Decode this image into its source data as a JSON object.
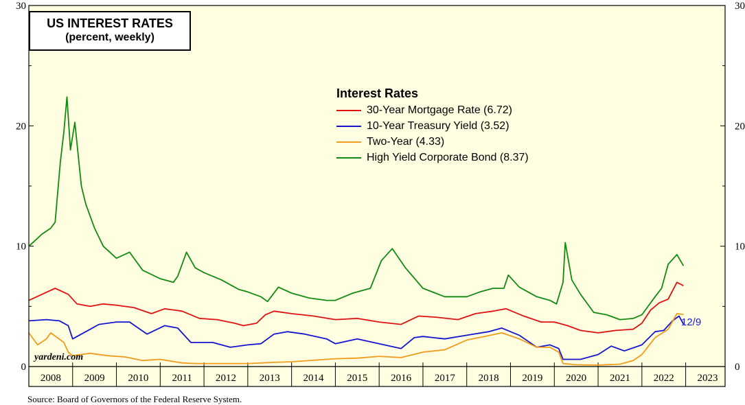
{
  "chart_data": {
    "type": "line",
    "title": "US INTEREST RATES",
    "subtitle": "(percent, weekly)",
    "legend_title": "Interest Rates",
    "ylim": [
      0,
      30
    ],
    "yticks": [
      "0",
      "10",
      "20",
      "30"
    ],
    "xlim": [
      2008.0,
      2023.9
    ],
    "xticks": [
      "2008",
      "2009",
      "2010",
      "2011",
      "2012",
      "2013",
      "2014",
      "2015",
      "2016",
      "2017",
      "2018",
      "2019",
      "2020",
      "2021",
      "2022",
      "2023"
    ],
    "end_label": "12/9",
    "source_text": "Source: Board of Governors of the Federal Reserve System.",
    "watermark": "yardeni.com",
    "series": [
      {
        "name": "30-Year Mortgage Rate (6.72)",
        "color": "#e01010",
        "x": [
          2008.0,
          2008.3,
          2008.6,
          2008.9,
          2009.1,
          2009.4,
          2009.7,
          2010.0,
          2010.4,
          2010.8,
          2011.1,
          2011.5,
          2011.9,
          2012.3,
          2012.7,
          2012.9,
          2013.2,
          2013.4,
          2013.6,
          2014.0,
          2014.5,
          2015.0,
          2015.5,
          2016.0,
          2016.5,
          2016.9,
          2017.3,
          2017.8,
          2018.2,
          2018.6,
          2018.9,
          2019.3,
          2019.7,
          2020.0,
          2020.3,
          2020.6,
          2021.0,
          2021.4,
          2021.8,
          2022.0,
          2022.2,
          2022.4,
          2022.6,
          2022.8,
          2022.95
        ],
        "values": [
          5.5,
          6.0,
          6.5,
          6.0,
          5.2,
          5.0,
          5.2,
          5.1,
          4.9,
          4.4,
          4.8,
          4.6,
          4.0,
          3.9,
          3.6,
          3.4,
          3.6,
          4.3,
          4.6,
          4.4,
          4.2,
          3.9,
          4.0,
          3.7,
          3.5,
          4.2,
          4.1,
          3.9,
          4.4,
          4.6,
          4.8,
          4.2,
          3.7,
          3.7,
          3.4,
          3.0,
          2.8,
          3.0,
          3.1,
          3.6,
          4.7,
          5.3,
          5.6,
          7.0,
          6.72
        ]
      },
      {
        "name": "10-Year Treasury Yield (3.52)",
        "color": "#1414d0",
        "x": [
          2008.0,
          2008.4,
          2008.7,
          2008.9,
          2009.0,
          2009.3,
          2009.6,
          2010.0,
          2010.3,
          2010.7,
          2011.1,
          2011.4,
          2011.7,
          2012.2,
          2012.6,
          2013.0,
          2013.3,
          2013.6,
          2013.9,
          2014.3,
          2014.8,
          2015.0,
          2015.5,
          2016.0,
          2016.5,
          2016.8,
          2017.0,
          2017.5,
          2018.0,
          2018.5,
          2018.8,
          2019.2,
          2019.6,
          2019.9,
          2020.1,
          2020.2,
          2020.6,
          2021.0,
          2021.3,
          2021.6,
          2022.0,
          2022.3,
          2022.5,
          2022.7,
          2022.85,
          2022.95
        ],
        "values": [
          3.8,
          3.9,
          3.8,
          3.4,
          2.3,
          2.9,
          3.5,
          3.7,
          3.7,
          2.7,
          3.4,
          3.2,
          2.0,
          2.0,
          1.6,
          1.8,
          1.9,
          2.7,
          2.9,
          2.7,
          2.3,
          1.9,
          2.3,
          1.9,
          1.5,
          2.4,
          2.5,
          2.3,
          2.6,
          2.9,
          3.2,
          2.6,
          1.6,
          1.8,
          1.5,
          0.6,
          0.6,
          1.0,
          1.7,
          1.3,
          1.8,
          2.9,
          3.0,
          3.8,
          4.2,
          3.52
        ]
      },
      {
        "name": "Two-Year (4.33)",
        "color": "#f29a1a",
        "x": [
          2008.0,
          2008.2,
          2008.4,
          2008.5,
          2008.8,
          2008.9,
          2009.0,
          2009.4,
          2009.8,
          2010.2,
          2010.6,
          2011.0,
          2011.5,
          2011.8,
          2012.5,
          2013.0,
          2013.6,
          2014.0,
          2014.6,
          2015.0,
          2015.5,
          2016.0,
          2016.5,
          2017.0,
          2017.5,
          2018.0,
          2018.4,
          2018.8,
          2019.2,
          2019.6,
          2019.9,
          2020.1,
          2020.2,
          2020.5,
          2021.0,
          2021.5,
          2021.8,
          2022.0,
          2022.3,
          2022.6,
          2022.8,
          2022.95
        ],
        "values": [
          2.8,
          1.8,
          2.3,
          2.8,
          2.0,
          1.2,
          0.9,
          1.1,
          0.9,
          0.8,
          0.5,
          0.6,
          0.3,
          0.25,
          0.25,
          0.25,
          0.35,
          0.4,
          0.55,
          0.65,
          0.7,
          0.85,
          0.75,
          1.2,
          1.4,
          2.2,
          2.5,
          2.8,
          2.3,
          1.6,
          1.6,
          1.2,
          0.25,
          0.15,
          0.12,
          0.2,
          0.5,
          1.0,
          2.4,
          3.1,
          4.4,
          4.33
        ]
      },
      {
        "name": "High Yield Corporate Bond (8.37)",
        "color": "#118a11",
        "x": [
          2008.0,
          2008.15,
          2008.3,
          2008.5,
          2008.6,
          2008.72,
          2008.8,
          2008.87,
          2008.95,
          2009.05,
          2009.2,
          2009.3,
          2009.5,
          2009.7,
          2010.0,
          2010.3,
          2010.6,
          2011.0,
          2011.3,
          2011.4,
          2011.6,
          2011.8,
          2012.0,
          2012.4,
          2012.8,
          2013.0,
          2013.3,
          2013.45,
          2013.7,
          2014.0,
          2014.4,
          2014.8,
          2015.0,
          2015.4,
          2015.8,
          2016.05,
          2016.3,
          2016.6,
          2017.0,
          2017.5,
          2018.0,
          2018.3,
          2018.6,
          2018.85,
          2018.95,
          2019.2,
          2019.6,
          2019.9,
          2020.05,
          2020.2,
          2020.25,
          2020.4,
          2020.6,
          2020.9,
          2021.2,
          2021.5,
          2021.8,
          2022.0,
          2022.3,
          2022.45,
          2022.6,
          2022.8,
          2022.95
        ],
        "values": [
          10.0,
          10.5,
          11.0,
          11.5,
          12.0,
          17.0,
          19.5,
          22.4,
          18.0,
          20.3,
          15.0,
          13.5,
          11.5,
          10.0,
          9.0,
          9.5,
          8.0,
          7.3,
          7.0,
          7.5,
          9.5,
          8.2,
          7.8,
          7.2,
          6.4,
          6.2,
          5.8,
          5.4,
          6.6,
          6.1,
          5.7,
          5.5,
          5.5,
          6.1,
          6.5,
          8.8,
          9.8,
          8.2,
          6.5,
          5.8,
          5.8,
          6.2,
          6.5,
          6.5,
          7.6,
          6.6,
          5.8,
          5.5,
          5.2,
          7.0,
          10.3,
          7.2,
          6.0,
          4.5,
          4.3,
          3.9,
          4.0,
          4.3,
          5.8,
          6.5,
          8.5,
          9.3,
          8.37
        ]
      }
    ]
  }
}
